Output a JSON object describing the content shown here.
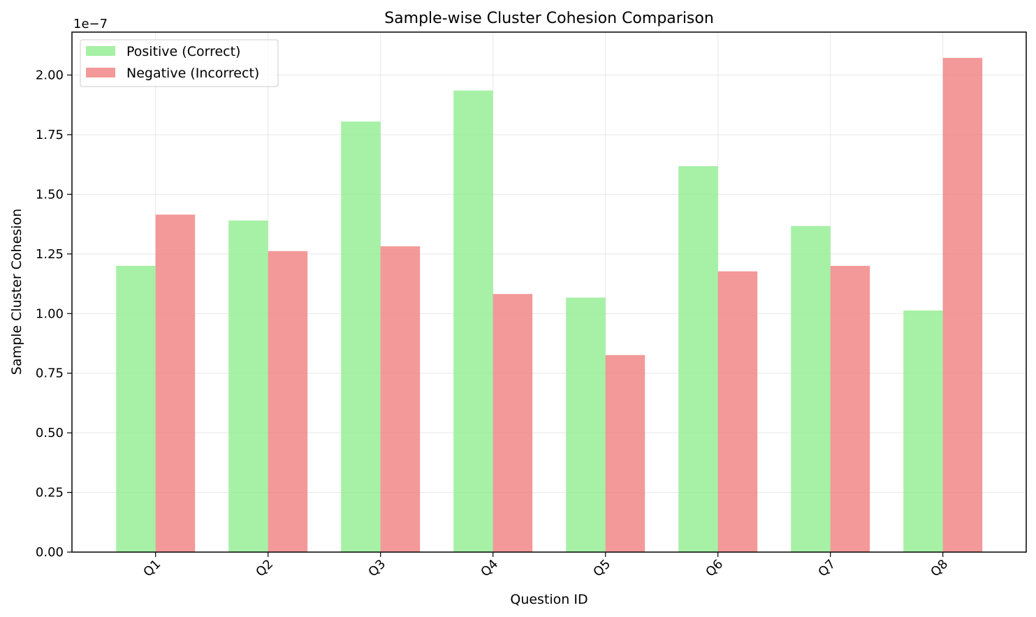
{
  "chart_data": {
    "type": "bar",
    "title": "Sample-wise Cluster Cohesion Comparison",
    "xlabel": "Question ID",
    "ylabel": "Sample Cluster Cohesion",
    "offset_text": "1e−7",
    "categories": [
      "Q1",
      "Q2",
      "Q3",
      "Q4",
      "Q5",
      "Q6",
      "Q7",
      "Q8"
    ],
    "series": [
      {
        "name": "Positive (Correct)",
        "color": "#90ee90",
        "values": [
          1.2e-07,
          1.39e-07,
          1.805e-07,
          1.935e-07,
          1.067e-07,
          1.618e-07,
          1.367e-07,
          1.013e-07
        ]
      },
      {
        "name": "Negative (Incorrect)",
        "color": "#f08080",
        "values": [
          1.415e-07,
          1.262e-07,
          1.282e-07,
          1.082e-07,
          8.26e-08,
          1.177e-07,
          1.2e-07,
          2.072e-07
        ]
      }
    ],
    "yticks": [
      "0.00",
      "0.25",
      "0.50",
      "0.75",
      "1.00",
      "1.25",
      "1.50",
      "1.75",
      "2.00"
    ],
    "ylim": [
      0,
      2.18e-07
    ],
    "grid": true,
    "legend_position": "upper left"
  }
}
